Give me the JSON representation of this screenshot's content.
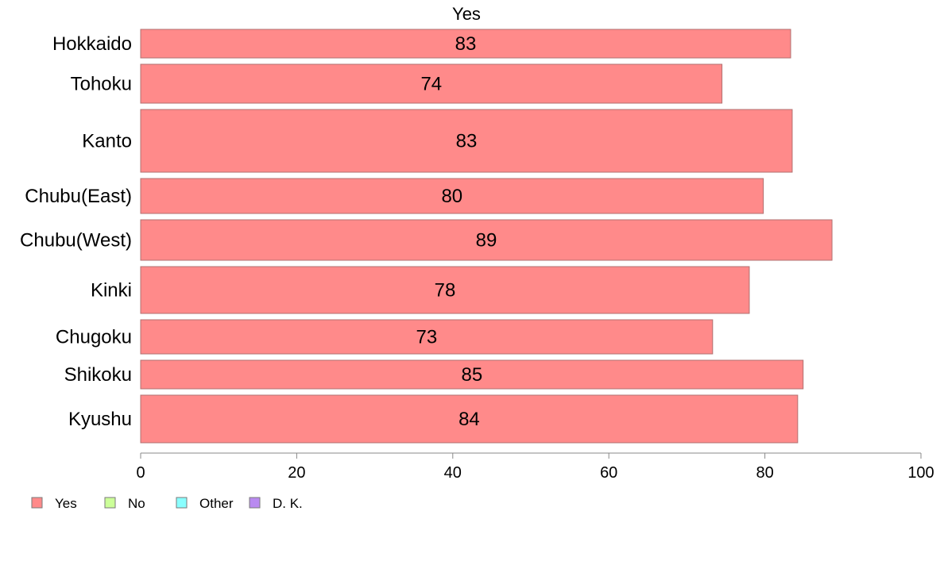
{
  "chart_data": {
    "type": "bar",
    "orientation": "horizontal",
    "title": "Yes",
    "categories": [
      "Hokkaido",
      "Tohoku",
      "Kanto",
      "Chubu(East)",
      "Chubu(West)",
      "Kinki",
      "Chugoku",
      "Shikoku",
      "Kyushu"
    ],
    "series": [
      {
        "name": "Yes",
        "values": [
          83.3,
          74.5,
          83.5,
          79.8,
          88.6,
          78.0,
          73.3,
          84.9,
          84.2
        ],
        "labels": [
          "83",
          "74",
          "83",
          "80",
          "89",
          "78",
          "73",
          "85",
          "84"
        ]
      }
    ],
    "xlim": [
      0,
      100
    ],
    "xticks": [
      "0",
      "20",
      "40",
      "60",
      "80",
      "100"
    ],
    "xtick_values": [
      0,
      20,
      40,
      60,
      80,
      100
    ],
    "grid": false,
    "legend": {
      "placement": "bottom-left",
      "entries": [
        {
          "name": "Yes",
          "color": "#ff8a8a"
        },
        {
          "name": "No",
          "color": "#ccff99"
        },
        {
          "name": "Other",
          "color": "#8affff"
        },
        {
          "name": "D. K.",
          "color": "#b98af0"
        }
      ]
    },
    "colors": {
      "bar_fill": "#ff8a8a",
      "bar_stroke": "#b07070",
      "axis": "#888888"
    }
  }
}
